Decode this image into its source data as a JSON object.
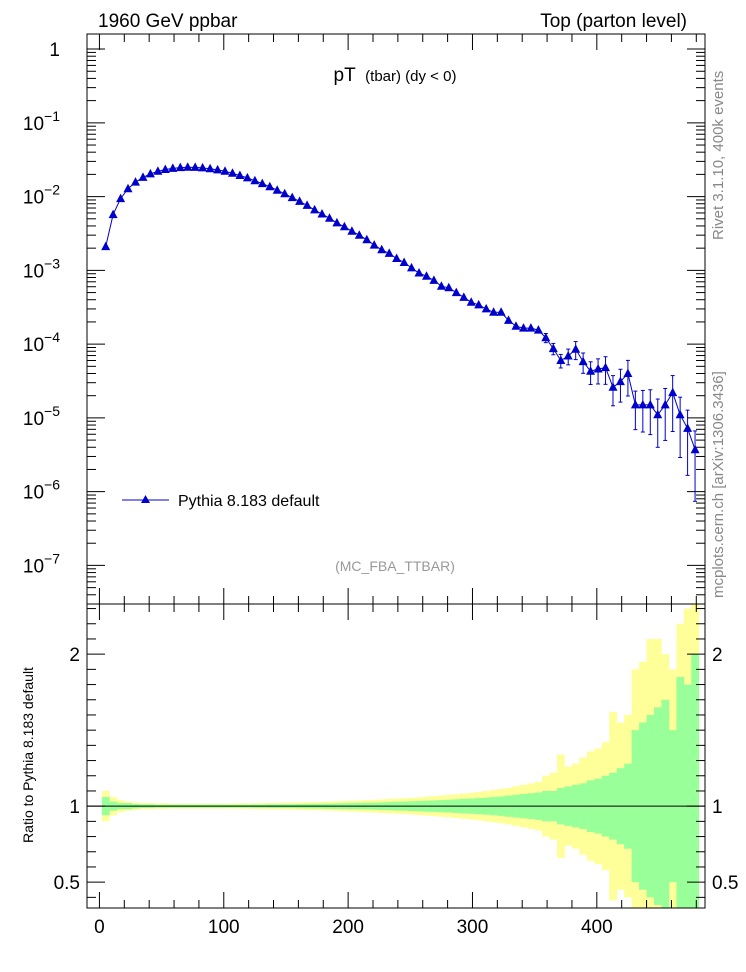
{
  "header": {
    "left": "1960 GeV ppbar",
    "right": "Top (parton level)"
  },
  "side_labels": {
    "rivet": "Rivet 3.1.10,  400k events",
    "mcplots": "mcplots.cern.ch [arXiv:1306.3436]"
  },
  "chart_data": [
    {
      "type": "line",
      "title": {
        "main": "pT",
        "sub": "(tbar) (dy < 0)"
      },
      "watermark": "(MC_FBA_TTBAR)",
      "yscale": "log",
      "xlim": [
        -10,
        487
      ],
      "ylim": [
        3e-08,
        1.6
      ],
      "y_ticks": [
        {
          "v": 1,
          "base": "1",
          "exp": ""
        },
        {
          "v": 0.1,
          "base": "10",
          "exp": "−1"
        },
        {
          "v": 0.01,
          "base": "10",
          "exp": "−2"
        },
        {
          "v": 0.001,
          "base": "10",
          "exp": "−3"
        },
        {
          "v": 0.0001,
          "base": "10",
          "exp": "−4"
        },
        {
          "v": 1e-05,
          "base": "10",
          "exp": "−5"
        },
        {
          "v": 1e-06,
          "base": "10",
          "exp": "−6"
        },
        {
          "v": 1e-07,
          "base": "10",
          "exp": "−7"
        }
      ],
      "legend": {
        "label": "Pythia 8.183 default",
        "position": "lower-left"
      },
      "series": [
        {
          "name": "Pythia 8.183 default",
          "color": "#0000cc",
          "marker": "triangle-up",
          "points": [
            {
              "x": 5,
              "y": 0.0021
            },
            {
              "x": 11,
              "y": 0.0057
            },
            {
              "x": 17,
              "y": 0.0094
            },
            {
              "x": 23,
              "y": 0.0128
            },
            {
              "x": 29,
              "y": 0.0157
            },
            {
              "x": 35,
              "y": 0.0182
            },
            {
              "x": 41,
              "y": 0.0203
            },
            {
              "x": 47,
              "y": 0.022
            },
            {
              "x": 53,
              "y": 0.0233
            },
            {
              "x": 59,
              "y": 0.0241
            },
            {
              "x": 65,
              "y": 0.0247
            },
            {
              "x": 71,
              "y": 0.025
            },
            {
              "x": 77,
              "y": 0.0249
            },
            {
              "x": 83,
              "y": 0.0245
            },
            {
              "x": 89,
              "y": 0.0239
            },
            {
              "x": 95,
              "y": 0.023
            },
            {
              "x": 101,
              "y": 0.022
            },
            {
              "x": 107,
              "y": 0.0207
            },
            {
              "x": 113,
              "y": 0.0193
            },
            {
              "x": 119,
              "y": 0.0179
            },
            {
              "x": 125,
              "y": 0.0164
            },
            {
              "x": 131,
              "y": 0.015
            },
            {
              "x": 137,
              "y": 0.0136
            },
            {
              "x": 143,
              "y": 0.0122
            },
            {
              "x": 149,
              "y": 0.0109
            },
            {
              "x": 155,
              "y": 0.0097
            },
            {
              "x": 161,
              "y": 0.0086
            },
            {
              "x": 167,
              "y": 0.0076
            },
            {
              "x": 173,
              "y": 0.0066
            },
            {
              "x": 179,
              "y": 0.0058
            },
            {
              "x": 185,
              "y": 0.0051
            },
            {
              "x": 191,
              "y": 0.0044
            },
            {
              "x": 197,
              "y": 0.0039
            },
            {
              "x": 203,
              "y": 0.0034
            },
            {
              "x": 209,
              "y": 0.003
            },
            {
              "x": 215,
              "y": 0.0026
            },
            {
              "x": 221,
              "y": 0.0022
            },
            {
              "x": 227,
              "y": 0.0019
            },
            {
              "x": 233,
              "y": 0.0017
            },
            {
              "x": 239,
              "y": 0.00145
            },
            {
              "x": 245,
              "y": 0.00128
            },
            {
              "x": 251,
              "y": 0.00108
            },
            {
              "x": 257,
              "y": 0.00092
            },
            {
              "x": 263,
              "y": 0.00083
            },
            {
              "x": 269,
              "y": 0.00073
            },
            {
              "x": 275,
              "y": 0.00061
            },
            {
              "x": 281,
              "y": 0.00058
            },
            {
              "x": 287,
              "y": 0.0005
            },
            {
              "x": 293,
              "y": 0.00043
            },
            {
              "x": 299,
              "y": 0.00037
            },
            {
              "x": 305,
              "y": 0.00034
            },
            {
              "x": 311,
              "y": 0.0003
            },
            {
              "x": 317,
              "y": 0.00027
            },
            {
              "x": 323,
              "y": 0.00027
            },
            {
              "x": 329,
              "y": 0.00021
            },
            {
              "x": 335,
              "y": 0.000175
            },
            {
              "x": 341,
              "y": 0.000165
            },
            {
              "x": 347,
              "y": 0.000165
            },
            {
              "x": 353,
              "y": 0.000155
            },
            {
              "x": 359,
              "y": 0.000122
            },
            {
              "x": 365,
              "y": 8.7e-05
            },
            {
              "x": 371,
              "y": 6e-05
            },
            {
              "x": 377,
              "y": 6.9e-05
            },
            {
              "x": 383,
              "y": 8.5e-05
            },
            {
              "x": 389,
              "y": 5.8e-05
            },
            {
              "x": 395,
              "y": 4.3e-05
            },
            {
              "x": 401,
              "y": 4.6e-05
            },
            {
              "x": 407,
              "y": 4.8e-05
            },
            {
              "x": 413,
              "y": 2.6e-05
            },
            {
              "x": 419,
              "y": 3.1e-05
            },
            {
              "x": 425,
              "y": 4e-05
            },
            {
              "x": 431,
              "y": 1.5e-05
            },
            {
              "x": 437,
              "y": 1.5e-05
            },
            {
              "x": 443,
              "y": 1.5e-05
            },
            {
              "x": 449,
              "y": 1.1e-05
            },
            {
              "x": 455,
              "y": 1.5e-05
            },
            {
              "x": 461,
              "y": 2.2e-05
            },
            {
              "x": 467,
              "y": 1.1e-05
            },
            {
              "x": 473,
              "y": 7.2e-06
            },
            {
              "x": 479,
              "y": 3.7e-06
            }
          ]
        }
      ]
    },
    {
      "type": "area",
      "ylabel": "Ratio to Pythia 8.183 default",
      "xlim": [
        -10,
        487
      ],
      "ylim": [
        0.33,
        2.33
      ],
      "x_ticks": [
        0,
        100,
        200,
        300,
        400
      ],
      "y_ticks": [
        {
          "v": 0.5,
          "label": "0.5"
        },
        {
          "v": 1,
          "label": "1"
        },
        {
          "v": 2,
          "label": "2"
        }
      ],
      "reference_line": 1,
      "bin_width": 6,
      "band_colors": {
        "inner": "#99ff99",
        "outer": "#ffff99"
      },
      "bands": [
        {
          "x": 5,
          "inner": 0.06,
          "outer": 0.1
        },
        {
          "x": 11,
          "inner": 0.03,
          "outer": 0.06
        },
        {
          "x": 17,
          "inner": 0.02,
          "outer": 0.04
        },
        {
          "x": 23,
          "inner": 0.02,
          "outer": 0.03
        },
        {
          "x": 29,
          "inner": 0.015,
          "outer": 0.025
        },
        {
          "x": 35,
          "inner": 0.012,
          "outer": 0.02
        },
        {
          "x": 41,
          "inner": 0.012,
          "outer": 0.02
        },
        {
          "x": 47,
          "inner": 0.01,
          "outer": 0.018
        },
        {
          "x": 53,
          "inner": 0.01,
          "outer": 0.018
        },
        {
          "x": 59,
          "inner": 0.01,
          "outer": 0.016
        },
        {
          "x": 65,
          "inner": 0.01,
          "outer": 0.016
        },
        {
          "x": 71,
          "inner": 0.01,
          "outer": 0.016
        },
        {
          "x": 77,
          "inner": 0.01,
          "outer": 0.016
        },
        {
          "x": 83,
          "inner": 0.01,
          "outer": 0.016
        },
        {
          "x": 89,
          "inner": 0.01,
          "outer": 0.016
        },
        {
          "x": 95,
          "inner": 0.01,
          "outer": 0.016
        },
        {
          "x": 101,
          "inner": 0.01,
          "outer": 0.016
        },
        {
          "x": 107,
          "inner": 0.01,
          "outer": 0.016
        },
        {
          "x": 113,
          "inner": 0.01,
          "outer": 0.018
        },
        {
          "x": 119,
          "inner": 0.01,
          "outer": 0.018
        },
        {
          "x": 125,
          "inner": 0.011,
          "outer": 0.019
        },
        {
          "x": 131,
          "inner": 0.011,
          "outer": 0.02
        },
        {
          "x": 137,
          "inner": 0.012,
          "outer": 0.021
        },
        {
          "x": 143,
          "inner": 0.012,
          "outer": 0.022
        },
        {
          "x": 149,
          "inner": 0.013,
          "outer": 0.023
        },
        {
          "x": 155,
          "inner": 0.013,
          "outer": 0.024
        },
        {
          "x": 161,
          "inner": 0.014,
          "outer": 0.025
        },
        {
          "x": 167,
          "inner": 0.015,
          "outer": 0.026
        },
        {
          "x": 173,
          "inner": 0.015,
          "outer": 0.027
        },
        {
          "x": 179,
          "inner": 0.016,
          "outer": 0.028
        },
        {
          "x": 185,
          "inner": 0.017,
          "outer": 0.03
        },
        {
          "x": 191,
          "inner": 0.018,
          "outer": 0.032
        },
        {
          "x": 197,
          "inner": 0.019,
          "outer": 0.034
        },
        {
          "x": 203,
          "inner": 0.02,
          "outer": 0.036
        },
        {
          "x": 209,
          "inner": 0.021,
          "outer": 0.038
        },
        {
          "x": 215,
          "inner": 0.022,
          "outer": 0.04
        },
        {
          "x": 221,
          "inner": 0.023,
          "outer": 0.042
        },
        {
          "x": 227,
          "inner": 0.025,
          "outer": 0.045
        },
        {
          "x": 233,
          "inner": 0.027,
          "outer": 0.048
        },
        {
          "x": 239,
          "inner": 0.029,
          "outer": 0.05
        },
        {
          "x": 245,
          "inner": 0.03,
          "outer": 0.052
        },
        {
          "x": 251,
          "inner": 0.032,
          "outer": 0.055
        },
        {
          "x": 257,
          "inner": 0.034,
          "outer": 0.058
        },
        {
          "x": 263,
          "inner": 0.036,
          "outer": 0.062
        },
        {
          "x": 269,
          "inner": 0.038,
          "outer": 0.066
        },
        {
          "x": 275,
          "inner": 0.04,
          "outer": 0.07
        },
        {
          "x": 281,
          "inner": 0.042,
          "outer": 0.074
        },
        {
          "x": 287,
          "inner": 0.045,
          "outer": 0.078
        },
        {
          "x": 293,
          "inner": 0.048,
          "outer": 0.083
        },
        {
          "x": 299,
          "inner": 0.05,
          "outer": 0.088
        },
        {
          "x": 305,
          "inner": 0.053,
          "outer": 0.093
        },
        {
          "x": 311,
          "inner": 0.056,
          "outer": 0.1
        },
        {
          "x": 317,
          "inner": 0.06,
          "outer": 0.106
        },
        {
          "x": 323,
          "inner": 0.064,
          "outer": 0.113
        },
        {
          "x": 329,
          "inner": 0.07,
          "outer": 0.12
        },
        {
          "x": 335,
          "inner": 0.075,
          "outer": 0.13
        },
        {
          "x": 341,
          "inner": 0.08,
          "outer": 0.14
        },
        {
          "x": 347,
          "inner": 0.085,
          "outer": 0.15
        },
        {
          "x": 353,
          "inner": 0.09,
          "outer": 0.16
        },
        {
          "x": 359,
          "inner": 0.1,
          "outer": 0.2
        },
        {
          "x": 365,
          "inner": 0.1,
          "outer": 0.22
        },
        {
          "x": 371,
          "inner": 0.12,
          "outer": 0.34
        },
        {
          "x": 377,
          "inner": 0.13,
          "outer": 0.26
        },
        {
          "x": 383,
          "inner": 0.14,
          "outer": 0.28
        },
        {
          "x": 389,
          "inner": 0.15,
          "outer": 0.32
        },
        {
          "x": 395,
          "inner": 0.17,
          "outer": 0.36
        },
        {
          "x": 401,
          "inner": 0.18,
          "outer": 0.38
        },
        {
          "x": 407,
          "inner": 0.2,
          "outer": 0.42
        },
        {
          "x": 413,
          "inner": 0.22,
          "outer": 0.62
        },
        {
          "x": 419,
          "inner": 0.25,
          "outer": 0.55
        },
        {
          "x": 425,
          "inner": 0.28,
          "outer": 0.6
        },
        {
          "x": 431,
          "inner": 0.5,
          "outer": 0.9
        },
        {
          "x": 437,
          "inner": 0.55,
          "outer": 0.95
        },
        {
          "x": 443,
          "inner": 0.6,
          "outer": 1.1
        },
        {
          "x": 449,
          "inner": 0.65,
          "outer": 1.1
        },
        {
          "x": 455,
          "inner": 0.7,
          "outer": 1.0
        },
        {
          "x": 461,
          "inner": 0.5,
          "outer": 0.9
        },
        {
          "x": 467,
          "inner": 0.85,
          "outer": 1.2
        },
        {
          "x": 473,
          "inner": 0.8,
          "outer": 1.3
        },
        {
          "x": 479,
          "inner": 1.0,
          "outer": 1.4
        }
      ]
    }
  ]
}
